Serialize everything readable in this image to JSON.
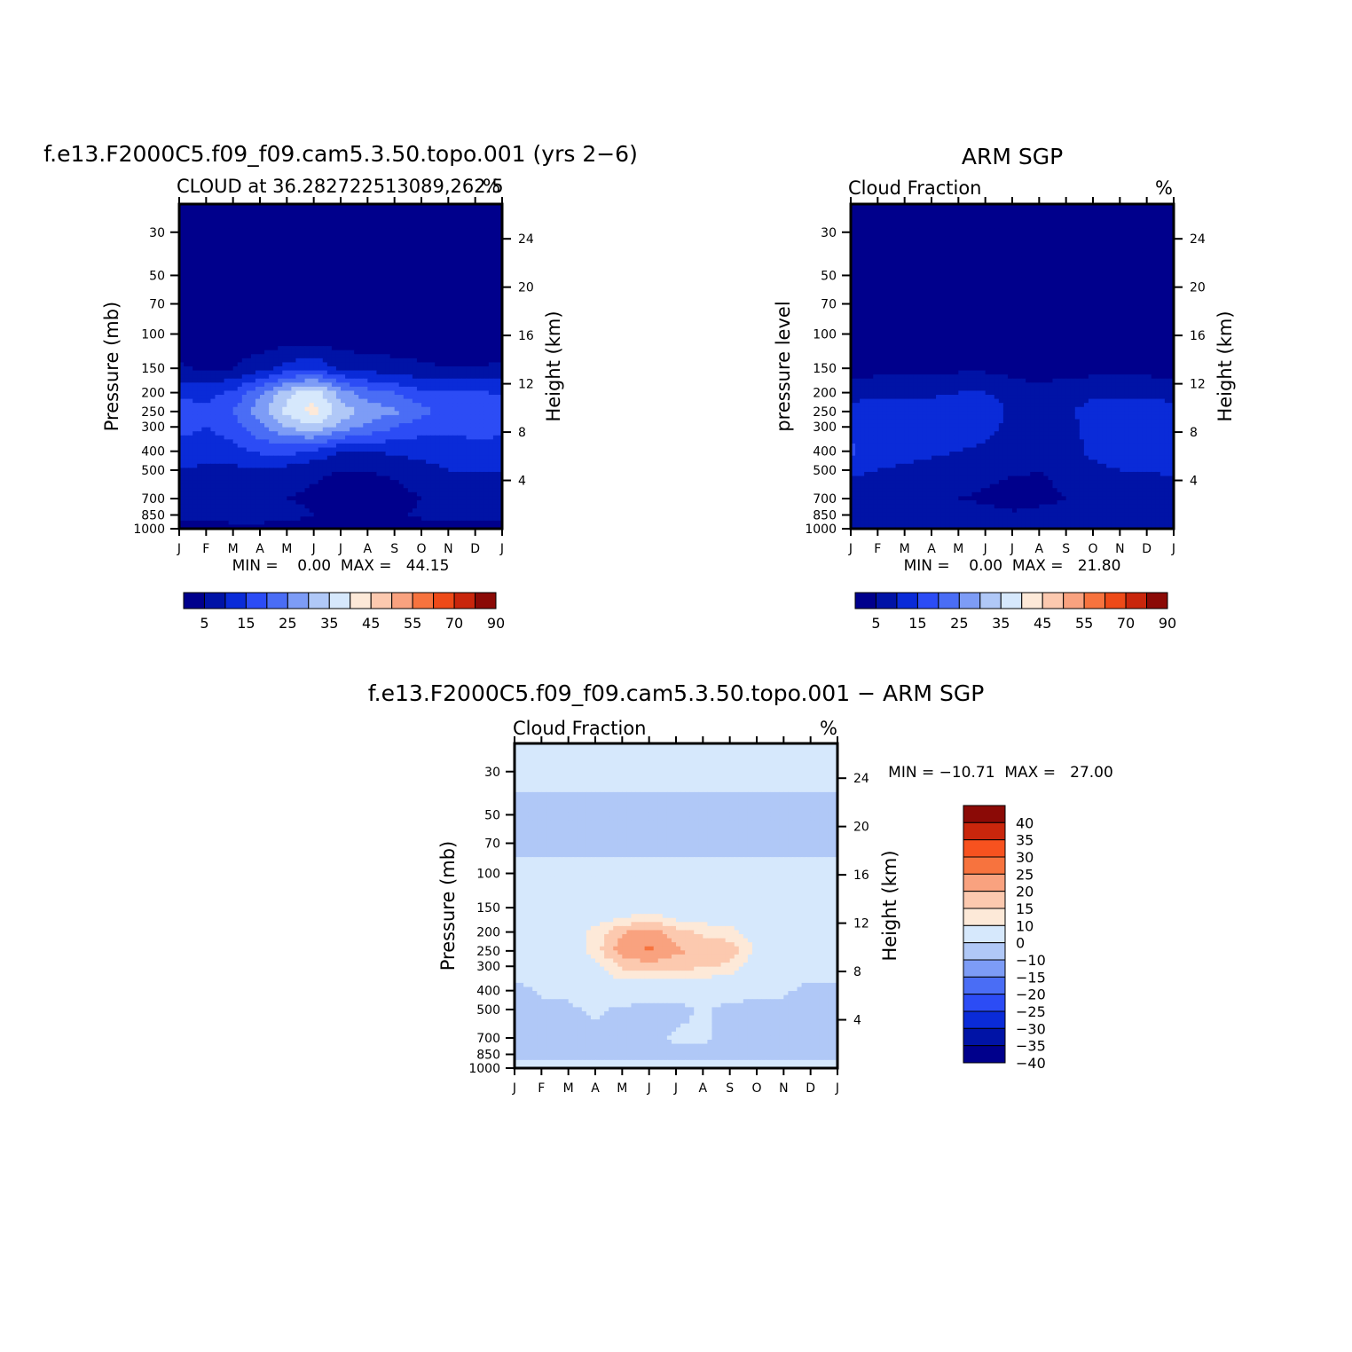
{
  "colors": {
    "cloud_levels": [
      "#00008c",
      "#0013a6",
      "#0a2bd8",
      "#2c4cf5",
      "#4a6df5",
      "#7d9cf6",
      "#b0c8f7",
      "#d6e8fc",
      "#fde9d8",
      "#fcc9af",
      "#f9a27f",
      "#f7733e",
      "#ee4a18",
      "#c9260c",
      "#8b0a06"
    ],
    "diff_levels": [
      "#00008c",
      "#0013a6",
      "#0a2bd8",
      "#2c4cf5",
      "#4a6df5",
      "#7d9cf6",
      "#b0c8f7",
      "#d6e8fc",
      "#fde9d8",
      "#fcc9af",
      "#f9a27f",
      "#f7733e",
      "#f7521f",
      "#c9260c",
      "#8b0a06"
    ]
  },
  "shared_axes": {
    "months": [
      "J",
      "F",
      "M",
      "A",
      "M",
      "J",
      "J",
      "A",
      "S",
      "O",
      "N",
      "D",
      "J"
    ],
    "pressure_ticks": [
      "30",
      "50",
      "70",
      "100",
      "150",
      "200",
      "250",
      "300",
      "400",
      "500",
      "700",
      "850",
      "1000"
    ],
    "height_ticks": [
      "24",
      "20",
      "16",
      "12",
      "8",
      "4"
    ]
  },
  "panels": [
    {
      "title": "f.e13.F2000C5.f09_f09.cam5.3.50.topo.001 (yrs 2−6)",
      "subtitle": "CLOUD at 36.282722513089,262.5",
      "units": "%",
      "ylabel": "Pressure (mb)",
      "y2label": "Height (km)",
      "stats": "MIN =    0.00  MAX =   44.15",
      "colorbar_labels": [
        "5",
        "15",
        "25",
        "35",
        "45",
        "55",
        "70",
        "90"
      ]
    },
    {
      "title": "ARM SGP",
      "subtitle": "Cloud Fraction",
      "units": "%",
      "ylabel": "pressure level",
      "y2label": "Height (km)",
      "stats": "MIN =    0.00  MAX =   21.80",
      "colorbar_labels": [
        "5",
        "15",
        "25",
        "35",
        "45",
        "55",
        "70",
        "90"
      ]
    },
    {
      "title": "f.e13.F2000C5.f09_f09.cam5.3.50.topo.001 − ARM SGP",
      "subtitle": "Cloud Fraction",
      "units": "%",
      "ylabel": "Pressure (mb)",
      "y2label": "Height (km)",
      "stats": "MIN = −10.71  MAX =   27.00",
      "colorbar_labels": [
        "40",
        "35",
        "30",
        "25",
        "20",
        "15",
        "10",
        "0",
        "−10",
        "−15",
        "−20",
        "−25",
        "−30",
        "−35",
        "−40"
      ]
    }
  ],
  "chart_data": [
    {
      "type": "heatmap",
      "title": "f.e13.F2000C5.f09_f09.cam5.3.50.topo.001 (yrs 2−6)",
      "variable": "CLOUD",
      "units": "%",
      "x": [
        "J",
        "F",
        "M",
        "A",
        "M",
        "J",
        "J",
        "A",
        "S",
        "O",
        "N",
        "D",
        "J"
      ],
      "y_pressure_mb": [
        30,
        50,
        70,
        100,
        150,
        200,
        250,
        300,
        400,
        500,
        700,
        850,
        1000
      ],
      "levels": [
        0,
        5,
        10,
        15,
        20,
        25,
        30,
        35,
        40,
        45,
        50,
        55,
        70,
        80,
        90
      ],
      "approx_grid_percent": [
        [
          1,
          1,
          1,
          1,
          1,
          1,
          1,
          1,
          1,
          1,
          1,
          1,
          1
        ],
        [
          1,
          1,
          1,
          1,
          1,
          1,
          1,
          1,
          1,
          1,
          1,
          1,
          1
        ],
        [
          1,
          1,
          1,
          1,
          1,
          1,
          1,
          1,
          1,
          1,
          1,
          1,
          1
        ],
        [
          1,
          1,
          1,
          1,
          1,
          1,
          1,
          1,
          1,
          1,
          1,
          1,
          1
        ],
        [
          6,
          4,
          5,
          8,
          12,
          14,
          9,
          8,
          7,
          6,
          5,
          5,
          6
        ],
        [
          14,
          13,
          16,
          24,
          33,
          38,
          28,
          22,
          20,
          16,
          15,
          16,
          14
        ],
        [
          18,
          16,
          20,
          28,
          37,
          42,
          33,
          28,
          26,
          22,
          18,
          20,
          18
        ],
        [
          17,
          15,
          18,
          24,
          30,
          34,
          28,
          24,
          20,
          17,
          16,
          18,
          17
        ],
        [
          12,
          12,
          13,
          16,
          17,
          14,
          10,
          10,
          11,
          12,
          12,
          12,
          12
        ],
        [
          10,
          9,
          9,
          9,
          8,
          6,
          5,
          5,
          6,
          8,
          10,
          10,
          10
        ],
        [
          6,
          6,
          6,
          6,
          5,
          4,
          2,
          2,
          3,
          5,
          6,
          6,
          6
        ],
        [
          7,
          7,
          9,
          9,
          7,
          5,
          3,
          3,
          4,
          6,
          7,
          7,
          7
        ],
        [
          2,
          2,
          2,
          2,
          2,
          2,
          2,
          2,
          2,
          2,
          2,
          2,
          2
        ]
      ],
      "min": 0.0,
      "max": 44.15,
      "xlabel": "",
      "ylabel": "Pressure (mb)",
      "y2label": "Height (km)",
      "y2_ticks_km": [
        24,
        20,
        16,
        12,
        8,
        4
      ]
    },
    {
      "type": "heatmap",
      "title": "ARM SGP",
      "variable": "Cloud Fraction",
      "units": "%",
      "x": [
        "J",
        "F",
        "M",
        "A",
        "M",
        "J",
        "J",
        "A",
        "S",
        "O",
        "N",
        "D",
        "J"
      ],
      "y_pressure_mb": [
        30,
        50,
        70,
        100,
        150,
        200,
        250,
        300,
        400,
        500,
        700,
        850,
        1000
      ],
      "levels": [
        0,
        5,
        10,
        15,
        20,
        25,
        30,
        35,
        40,
        45,
        50,
        55,
        70,
        80,
        90
      ],
      "approx_grid_percent": [
        [
          1,
          1,
          1,
          1,
          1,
          1,
          1,
          1,
          1,
          1,
          1,
          1,
          1
        ],
        [
          1,
          1,
          1,
          1,
          1,
          1,
          1,
          1,
          1,
          1,
          1,
          1,
          1
        ],
        [
          1,
          1,
          1,
          1,
          1,
          1,
          1,
          1,
          1,
          1,
          1,
          1,
          1
        ],
        [
          1,
          1,
          1,
          1,
          1,
          1,
          1,
          1,
          1,
          1,
          1,
          1,
          1
        ],
        [
          3,
          3,
          3,
          3,
          4,
          4,
          3,
          3,
          3,
          3,
          3,
          3,
          3
        ],
        [
          8,
          9,
          9,
          9,
          10,
          10,
          8,
          6,
          8,
          9,
          9,
          9,
          8
        ],
        [
          12,
          13,
          13,
          13,
          14,
          13,
          9,
          6,
          9,
          12,
          13,
          13,
          12
        ],
        [
          14,
          13,
          13,
          13,
          13,
          12,
          8,
          5,
          8,
          12,
          13,
          13,
          14
        ],
        [
          16,
          12,
          12,
          11,
          10,
          9,
          7,
          5,
          8,
          11,
          12,
          11,
          14
        ],
        [
          11,
          10,
          9,
          8,
          8,
          7,
          6,
          5,
          7,
          9,
          10,
          10,
          11
        ],
        [
          7,
          6,
          6,
          5,
          5,
          4,
          2,
          3,
          5,
          7,
          7,
          7,
          7
        ],
        [
          8,
          9,
          9,
          8,
          8,
          7,
          6,
          7,
          8,
          8,
          9,
          8,
          8
        ],
        [
          5,
          5,
          5,
          5,
          5,
          5,
          5,
          5,
          5,
          5,
          5,
          5,
          5
        ]
      ],
      "min": 0.0,
      "max": 21.8,
      "xlabel": "",
      "ylabel": "pressure level",
      "y2label": "Height (km)",
      "y2_ticks_km": [
        24,
        20,
        16,
        12,
        8,
        4
      ]
    },
    {
      "type": "heatmap",
      "title": "f.e13.F2000C5.f09_f09.cam5.3.50.topo.001 − ARM SGP",
      "variable": "Cloud Fraction",
      "units": "%",
      "x": [
        "J",
        "F",
        "M",
        "A",
        "M",
        "J",
        "J",
        "A",
        "S",
        "O",
        "N",
        "D",
        "J"
      ],
      "y_pressure_mb": [
        30,
        50,
        70,
        100,
        150,
        200,
        250,
        300,
        400,
        500,
        700,
        850,
        1000
      ],
      "levels": [
        -40,
        -35,
        -30,
        -25,
        -20,
        -15,
        -10,
        0,
        10,
        15,
        20,
        25,
        30,
        35,
        40
      ],
      "approx_grid_percent": [
        [
          1,
          1,
          1,
          1,
          1,
          1,
          1,
          1,
          1,
          1,
          1,
          1,
          1
        ],
        [
          -1,
          -1,
          -1,
          -1,
          -1,
          -1,
          -1,
          -1,
          -1,
          -1,
          -1,
          -1,
          -1
        ],
        [
          -1,
          -1,
          -1,
          -1,
          -1,
          -1,
          -1,
          -1,
          -1,
          -1,
          -1,
          -1,
          -1
        ],
        [
          1,
          1,
          1,
          1,
          1,
          1,
          1,
          1,
          1,
          1,
          1,
          1,
          1
        ],
        [
          2,
          1,
          2,
          3,
          4,
          6,
          3,
          3,
          2,
          2,
          2,
          2,
          2
        ],
        [
          5,
          4,
          6,
          12,
          19,
          23,
          17,
          14,
          12,
          7,
          5,
          6,
          5
        ],
        [
          4,
          3,
          5,
          13,
          23,
          26,
          21,
          19,
          18,
          9,
          4,
          5,
          4
        ],
        [
          3,
          2,
          3,
          8,
          16,
          18,
          17,
          16,
          14,
          5,
          3,
          4,
          3
        ],
        [
          -2,
          1,
          1,
          4,
          6,
          4,
          3,
          3,
          3,
          2,
          1,
          -2,
          -2
        ],
        [
          -2,
          -2,
          -1,
          1,
          -1,
          -3,
          -2,
          1,
          -2,
          -2,
          -2,
          -2,
          -2
        ],
        [
          -2,
          -2,
          -2,
          -2,
          -2,
          -2,
          1,
          1,
          -2,
          -2,
          -2,
          -2,
          -2
        ],
        [
          -2,
          -2,
          -2,
          -2,
          -2,
          -2,
          -2,
          -2,
          -2,
          -2,
          -2,
          -2,
          -2
        ],
        [
          2,
          2,
          2,
          2,
          2,
          2,
          2,
          2,
          2,
          2,
          2,
          2,
          2
        ]
      ],
      "min": -10.71,
      "max": 27.0,
      "xlabel": "",
      "ylabel": "Pressure (mb)",
      "y2label": "Height (km)",
      "y2_ticks_km": [
        24,
        20,
        16,
        12,
        8,
        4
      ]
    }
  ]
}
